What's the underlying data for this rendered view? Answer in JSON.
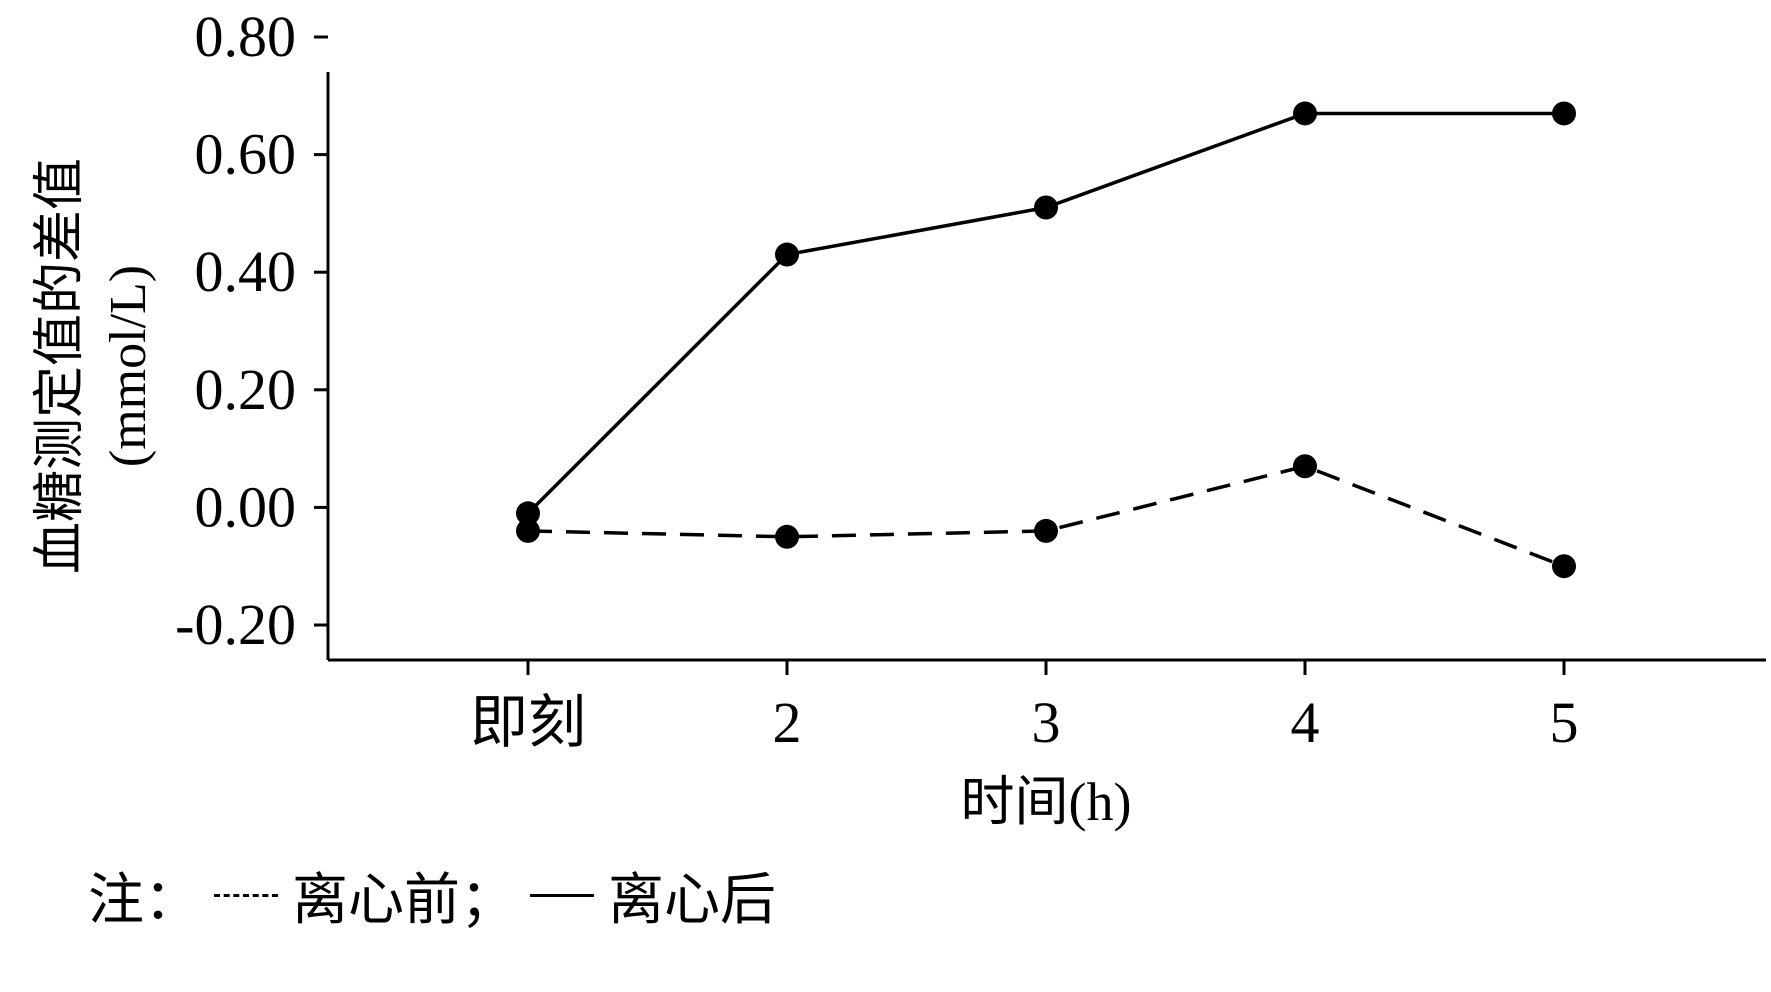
{
  "chart_data": {
    "type": "line",
    "title": "",
    "ylabel_line1": "血糖测定值的差值",
    "ylabel_line2": "(mmol/L)",
    "xlabel": "时间(h)",
    "categories": [
      "即刻",
      "2",
      "3",
      "4",
      "5"
    ],
    "y_ticks": [
      "0.80",
      "0.60",
      "0.40",
      "0.20",
      "0.00",
      "-0.20"
    ],
    "ylim": [
      -0.2,
      0.8
    ],
    "series": [
      {
        "name": "离心后",
        "style": "solid",
        "values": [
          -0.01,
          0.43,
          0.51,
          0.67,
          0.67
        ]
      },
      {
        "name": "离心前",
        "style": "dashed",
        "values": [
          -0.04,
          -0.05,
          -0.04,
          0.07,
          -0.1
        ]
      }
    ],
    "grid": false,
    "legend_placement": "bottom-left"
  },
  "note": {
    "prefix": "注：",
    "before_label": "离心前；",
    "after_label": "离心后"
  },
  "colors": {
    "line": "#000000",
    "background": "#ffffff"
  }
}
